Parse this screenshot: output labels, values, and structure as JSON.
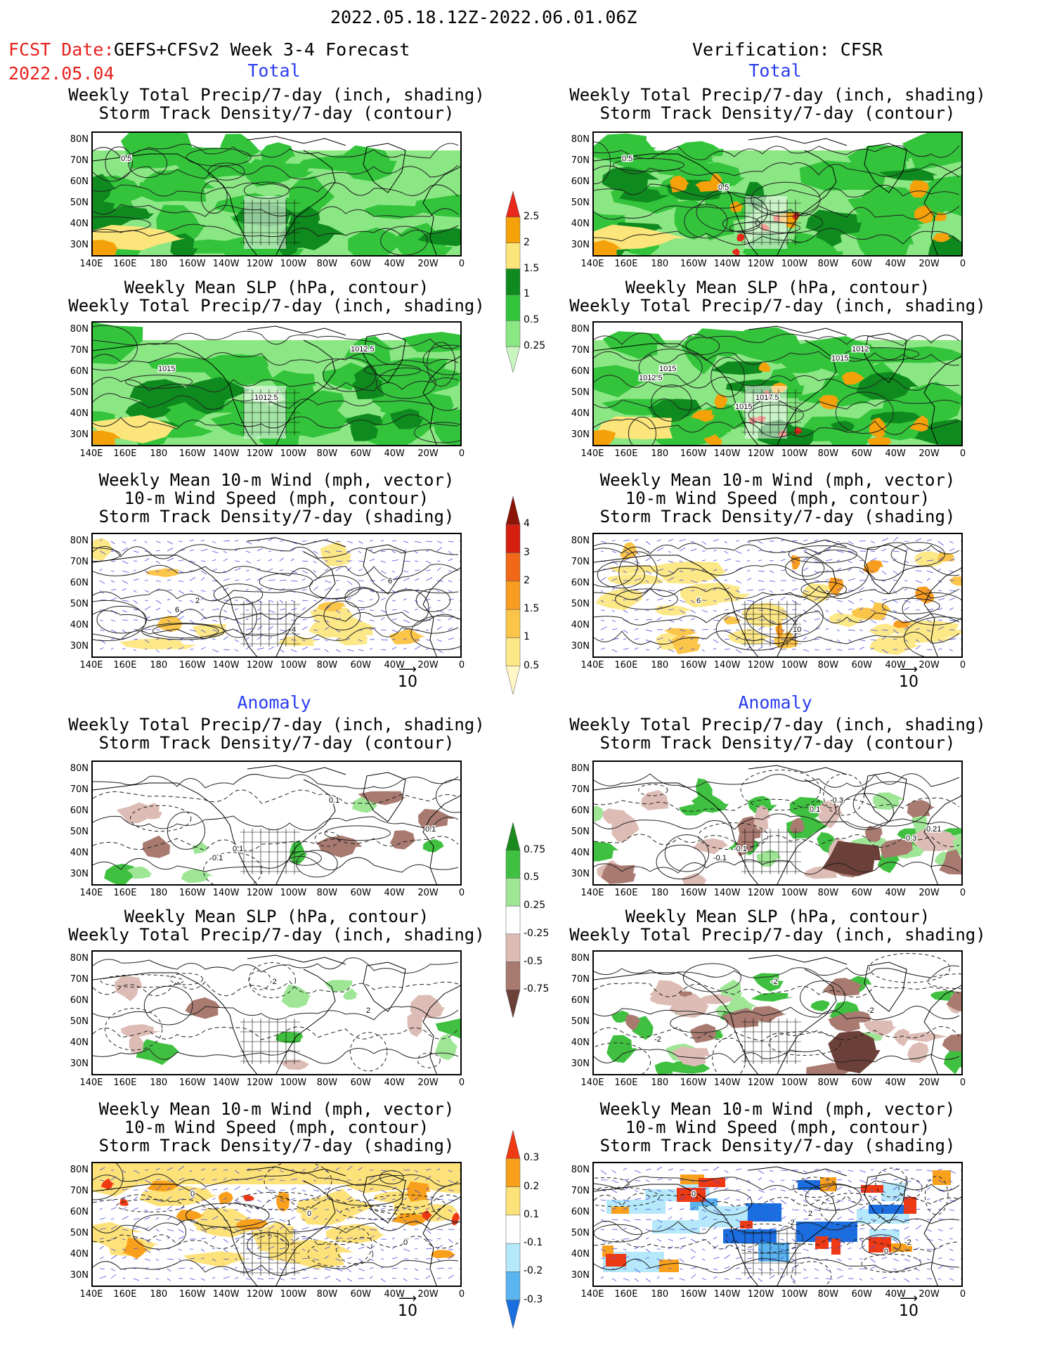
{
  "header": {
    "date_range": "2022.05.18.12Z-2022.06.01.06Z",
    "fcst_label": "FCST Date:",
    "fcst_model": "GEFS+CFSv2 Week 3-4 Forecast",
    "fcst_date": "2022.05.04",
    "verification": "Verification: CFSR"
  },
  "sections": {
    "total": "Total",
    "anomaly": "Anomaly"
  },
  "titles": {
    "precip_storm": [
      "Weekly Total Precip/7-day (inch, shading)",
      "Storm Track Density/7-day (contour)"
    ],
    "slp_precip": [
      "Weekly Mean SLP (hPa, contour)",
      "Weekly Total Precip/7-day (inch, shading)"
    ],
    "wind": [
      "Weekly Mean 10-m Wind (mph, vector)",
      "10-m Wind Speed (mph, contour)",
      "Storm Track Density/7-day (shading)"
    ]
  },
  "axes": {
    "lat": [
      "80N",
      "70N",
      "60N",
      "50N",
      "40N",
      "30N"
    ],
    "lon": [
      "140E",
      "160E",
      "180",
      "160W",
      "140W",
      "120W",
      "100W",
      "80W",
      "60W",
      "40W",
      "20W",
      "0"
    ]
  },
  "vector_ref": "10",
  "colorbars": {
    "precip_total": {
      "labels": [
        "2.5",
        "2",
        "1.5",
        "1",
        "0.5",
        "0.25"
      ],
      "colors": [
        "#e8281c",
        "#f5a20a",
        "#fce57a",
        "#0f8a1e",
        "#33c43b",
        "#8be684",
        "#c8f5c0"
      ]
    },
    "storm_total": {
      "labels": [
        "4",
        "3",
        "2",
        "1.5",
        "1",
        "0.5"
      ],
      "colors": [
        "#8a1408",
        "#d51f10",
        "#f06818",
        "#f89d20",
        "#fbc54a",
        "#fde887",
        "#fff7c8"
      ]
    },
    "precip_anom": {
      "labels": [
        "0.75",
        "0.5",
        "0.25",
        "-0.25",
        "-0.5",
        "-0.75"
      ],
      "colors": [
        "#1a8a1e",
        "#40c040",
        "#9ee696",
        "#ffffff",
        "#dcbcb4",
        "#a87a70",
        "#6b4038"
      ]
    },
    "storm_anom": {
      "labels": [
        "0.3",
        "0.2",
        "0.1",
        "-0.1",
        "-0.2",
        "-0.3"
      ],
      "colors": [
        "#ee3a14",
        "#f8a01c",
        "#fde27a",
        "#ffffff",
        "#b4e8fa",
        "#5ab4f0",
        "#1a6ee0"
      ]
    }
  },
  "contour_labels": {
    "fc_total_precip": [
      "0.5"
    ],
    "vf_total_precip": [
      "0.5",
      "0.5"
    ],
    "fc_total_slp": [
      "1015",
      "1012.5",
      "1012.5"
    ],
    "vf_total_slp": [
      "1015",
      "1017.5",
      "1012",
      "1012.5",
      "1015",
      "1015"
    ],
    "fc_total_wind": [
      "2",
      "4",
      "6",
      "6"
    ],
    "vf_total_wind": [
      "6",
      "10"
    ],
    "fc_anom_precip": [
      "0.1",
      "0.1",
      "0.1",
      "0.1"
    ],
    "vf_anom_precip": [
      "-0.1",
      "-0.3",
      "0.21",
      "-0.1",
      "0.1",
      "0.3"
    ],
    "fc_anom_slp": [
      "-2",
      "2"
    ],
    "vf_anom_slp": [
      "-2",
      "-2",
      "-2"
    ],
    "fc_anom_wind": [
      "0",
      "0",
      "0",
      "1"
    ],
    "vf_anom_wind": [
      "2",
      "-2",
      "0",
      "-2",
      "0"
    ]
  }
}
